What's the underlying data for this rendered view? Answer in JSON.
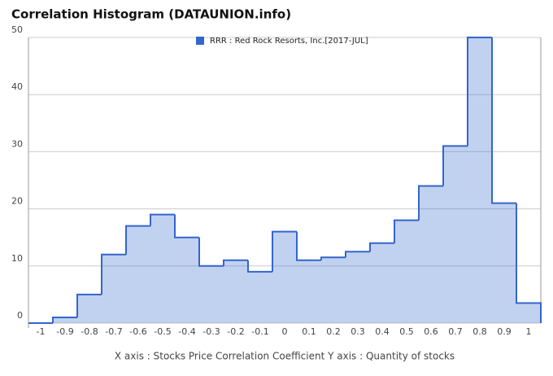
{
  "chart_data": {
    "type": "step-area",
    "title": "Correlation Histogram (DATAUNION.info)",
    "xlabel": "X axis : Stocks Price Correlation Coefficient  Y axis : Quantity of stocks",
    "categories": [
      "-1",
      "-0.9",
      "-0.8",
      "-0.7",
      "-0.6",
      "-0.5",
      "-0.4",
      "-0.3",
      "-0.2",
      "-0.1",
      "0",
      "0.1",
      "0.2",
      "0.3",
      "0.4",
      "0.5",
      "0.6",
      "0.7",
      "0.8",
      "0.9",
      "1"
    ],
    "series": [
      {
        "name": "RRR : Red Rock Resorts, Inc.[2017-JUL]",
        "color": "#3366cc",
        "values": [
          0,
          1,
          5,
          12,
          17,
          19,
          15,
          10,
          11,
          9,
          16,
          11,
          11.5,
          12.5,
          14,
          18,
          24,
          31,
          50,
          21,
          3.5
        ]
      }
    ],
    "ylim": [
      0,
      50
    ],
    "yticks": [
      0,
      10,
      20,
      30,
      40,
      50
    ],
    "grid": true
  }
}
